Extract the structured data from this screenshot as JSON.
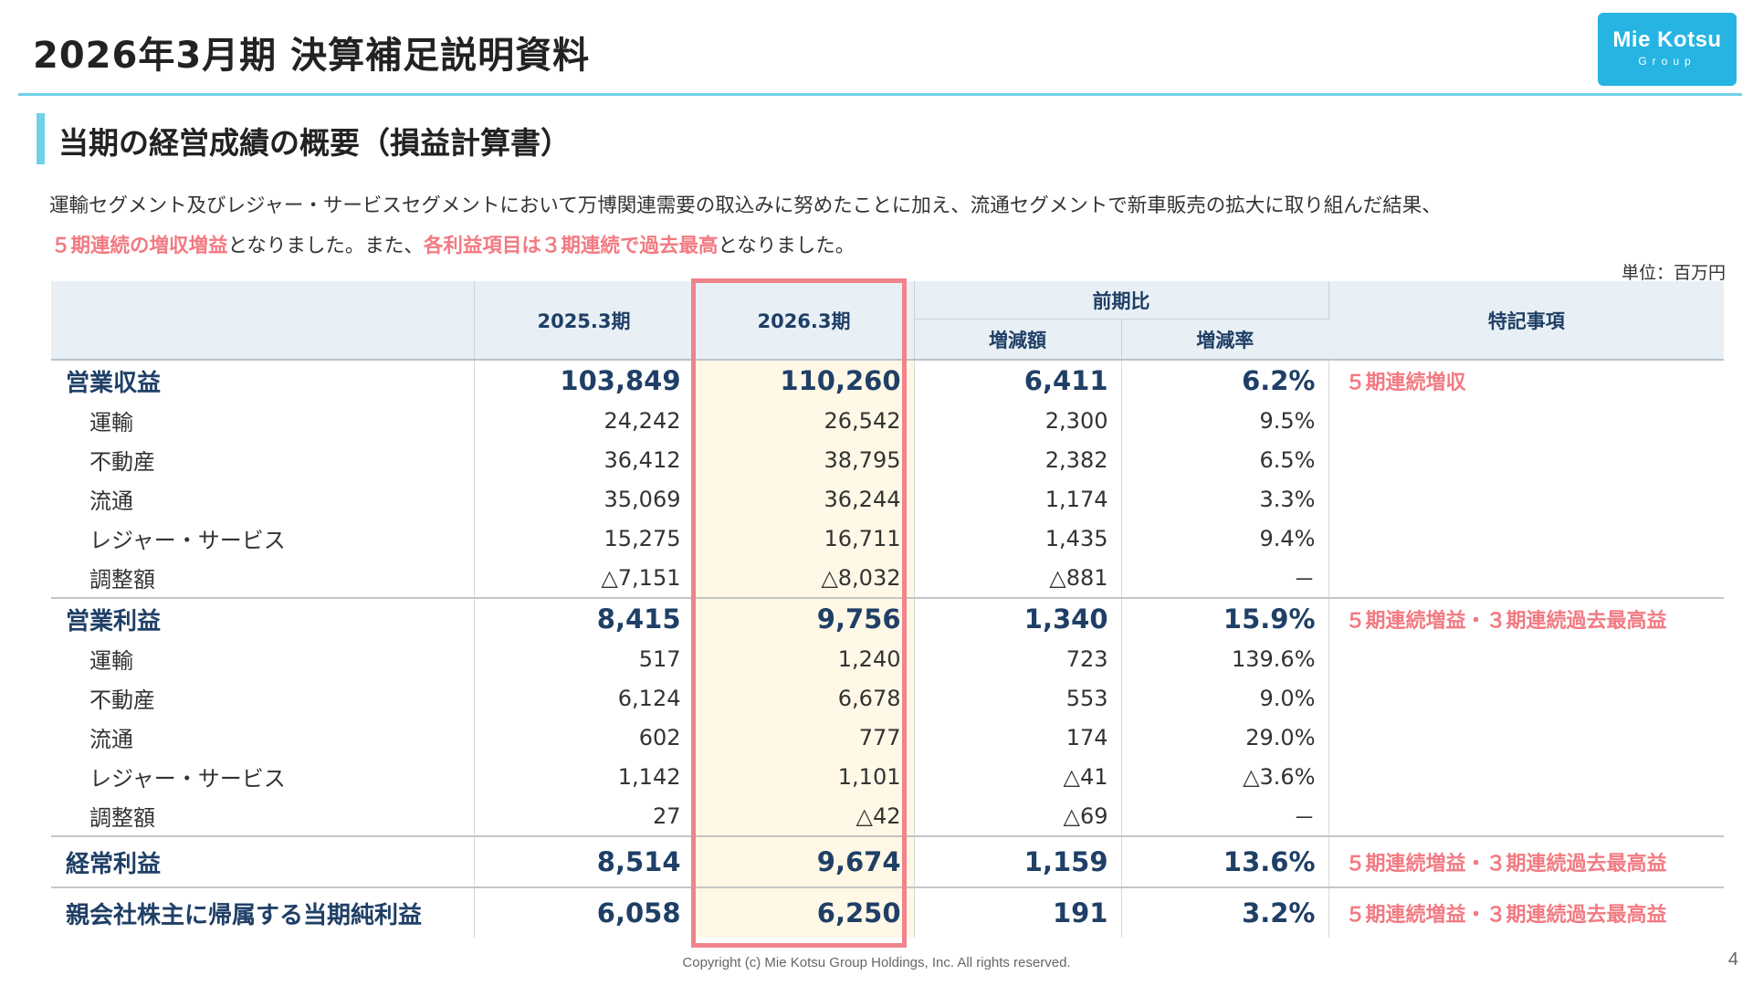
{
  "header": {
    "title": "2026年3月期 決算補足説明資料",
    "logo_main": "Mie Kotsu",
    "logo_sub": "Group"
  },
  "section": {
    "title": "当期の経営成績の概要（損益計算書）"
  },
  "intro": {
    "line1": "運輸セグメント及びレジャー・サービスセグメントにおいて万博関連需要の取込みに努めたことに加え、流通セグメントで新車販売の拡大に取り組んだ結果、",
    "line2_hl1": "５期連続の増収増益",
    "line2_mid": "となりました。また、",
    "line2_hl2": "各利益項目は３期連続で過去最高",
    "line2_end": "となりました。"
  },
  "unit": "単位：百万円",
  "table": {
    "headers": {
      "prev": "2025.3期",
      "curr": "2026.3期",
      "yoy": "前期比",
      "diff": "増減額",
      "rate": "増減率",
      "notes": "特記事項"
    },
    "rows": [
      {
        "label": "営業収益",
        "prev": "103,849",
        "curr": "110,260",
        "diff": "6,411",
        "rate": "6.2%",
        "note": "５期連続増収"
      },
      {
        "label": "運輸",
        "prev": "24,242",
        "curr": "26,542",
        "diff": "2,300",
        "rate": "9.5%",
        "note": ""
      },
      {
        "label": "不動産",
        "prev": "36,412",
        "curr": "38,795",
        "diff": "2,382",
        "rate": "6.5%",
        "note": ""
      },
      {
        "label": "流通",
        "prev": "35,069",
        "curr": "36,244",
        "diff": "1,174",
        "rate": "3.3%",
        "note": ""
      },
      {
        "label": "レジャー・サービス",
        "prev": "15,275",
        "curr": "16,711",
        "diff": "1,435",
        "rate": "9.4%",
        "note": ""
      },
      {
        "label": "調整額",
        "prev": "△7,151",
        "curr": "△8,032",
        "diff": "△881",
        "rate": "－",
        "note": ""
      },
      {
        "label": "営業利益",
        "prev": "8,415",
        "curr": "9,756",
        "diff": "1,340",
        "rate": "15.9%",
        "note": "５期連続増益・３期連続過去最高益"
      },
      {
        "label": "運輸",
        "prev": "517",
        "curr": "1,240",
        "diff": "723",
        "rate": "139.6%",
        "note": ""
      },
      {
        "label": "不動産",
        "prev": "6,124",
        "curr": "6,678",
        "diff": "553",
        "rate": "9.0%",
        "note": ""
      },
      {
        "label": "流通",
        "prev": "602",
        "curr": "777",
        "diff": "174",
        "rate": "29.0%",
        "note": ""
      },
      {
        "label": "レジャー・サービス",
        "prev": "1,142",
        "curr": "1,101",
        "diff": "△41",
        "rate": "△3.6%",
        "note": ""
      },
      {
        "label": "調整額",
        "prev": "27",
        "curr": "△42",
        "diff": "△69",
        "rate": "－",
        "note": ""
      },
      {
        "label": "経常利益",
        "prev": "8,514",
        "curr": "9,674",
        "diff": "1,159",
        "rate": "13.6%",
        "note": "５期連続増益・３期連続過去最高益"
      },
      {
        "label": "親会社株主に帰属する当期純利益",
        "prev": "6,058",
        "curr": "6,250",
        "diff": "191",
        "rate": "3.2%",
        "note": "５期連続増益・３期連続過去最高益"
      }
    ]
  },
  "footer": {
    "copyright": "Copyright (c) Mie Kotsu Group Holdings, Inc. All rights reserved.",
    "page": "4"
  },
  "colors": {
    "accent_cyan": "#6fd0e6",
    "logo_blue": "#26b4e3",
    "highlight_red": "#f27a82",
    "header_navy": "#1f3f66",
    "highlight_col_bg": "#fff8e6"
  }
}
